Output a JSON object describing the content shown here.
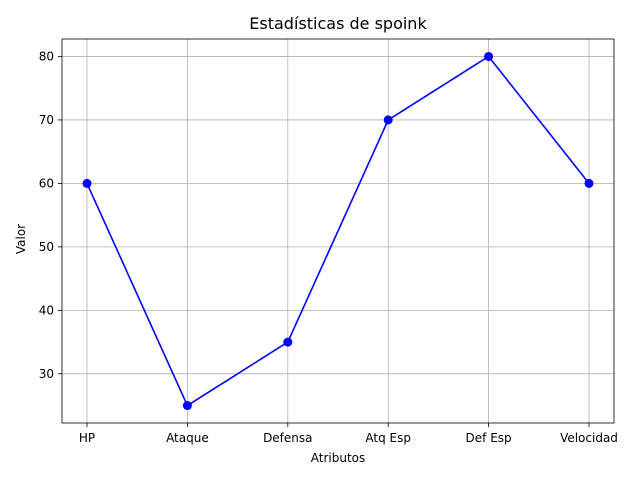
{
  "chart_data": {
    "type": "line",
    "title": "Estadísticas de spoink",
    "xlabel": "Atributos",
    "ylabel": "Valor",
    "categories": [
      "HP",
      "Ataque",
      "Defensa",
      "Atq Esp",
      "Def Esp",
      "Velocidad"
    ],
    "series": [
      {
        "values": [
          60,
          25,
          35,
          70,
          80,
          60
        ],
        "color": "#0000ff",
        "marker": "circle"
      }
    ],
    "ylim": [
      22.25,
      82.75
    ],
    "yticks": [
      30,
      40,
      50,
      60,
      70,
      80
    ],
    "grid": true
  }
}
